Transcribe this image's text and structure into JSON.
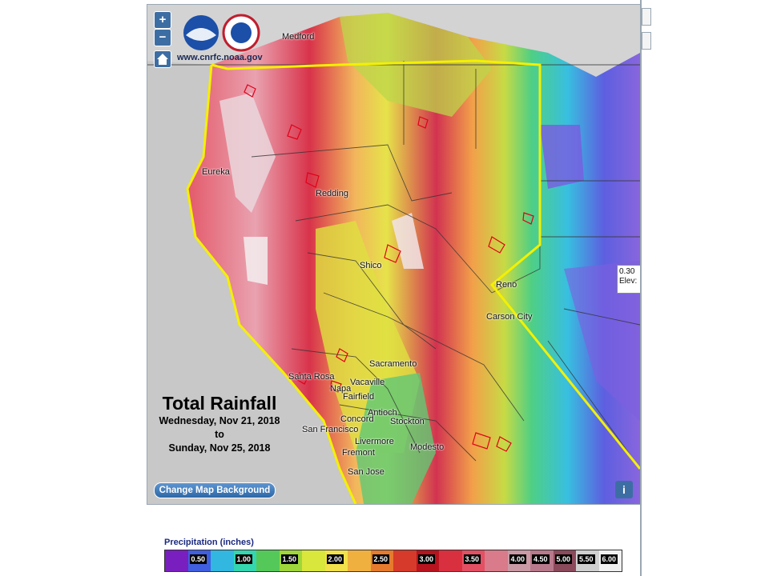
{
  "map": {
    "logo_url": "www.cnrfc.noaa.gov",
    "zoom_in": "+",
    "zoom_out": "−",
    "cities": [
      "Medford",
      "Eureka",
      "Redding",
      "Shico",
      "Reno",
      "Carson City",
      "Sacramento",
      "Santa Rosa",
      "Napa",
      "Vacaville",
      "Fairfield",
      "Concord",
      "Antioch",
      "San Francisco",
      "Stockton",
      "Livermore",
      "Fremont",
      "Modesto",
      "San Jose"
    ],
    "popup": {
      "line1": "0.30",
      "line2": "Elev:"
    }
  },
  "title": {
    "main": "Total Rainfall",
    "line1": "Wednesday, Nov 21, 2018",
    "line2": "to",
    "line3": "Sunday, Nov 25, 2018"
  },
  "buttons": {
    "change_bg": "Change Map Background",
    "info": "i"
  },
  "legend": {
    "title": "Precipitation (inches)",
    "colors": [
      "#7a1fbf",
      "#3f5fe0",
      "#31b7e0",
      "#34d6b0",
      "#55c85a",
      "#9fd63a",
      "#d9e63c",
      "#f2e14a",
      "#f0b040",
      "#e67b2e",
      "#d63a2a",
      "#b8141e",
      "#d93040",
      "#e35063",
      "#d97b8a",
      "#c99aa5",
      "#b9798c",
      "#8b4a5c",
      "#d0d0d0",
      "#f0f0f0"
    ],
    "labels": [
      "0.50",
      "1.00",
      "1.50",
      "2.00",
      "2.50",
      "3.00",
      "3.50",
      "4.00",
      "4.50",
      "5.00",
      "5.50",
      "6.00"
    ],
    "label_positions": [
      1,
      3,
      5,
      7,
      9,
      11,
      13,
      15,
      16,
      17,
      18,
      19
    ]
  }
}
